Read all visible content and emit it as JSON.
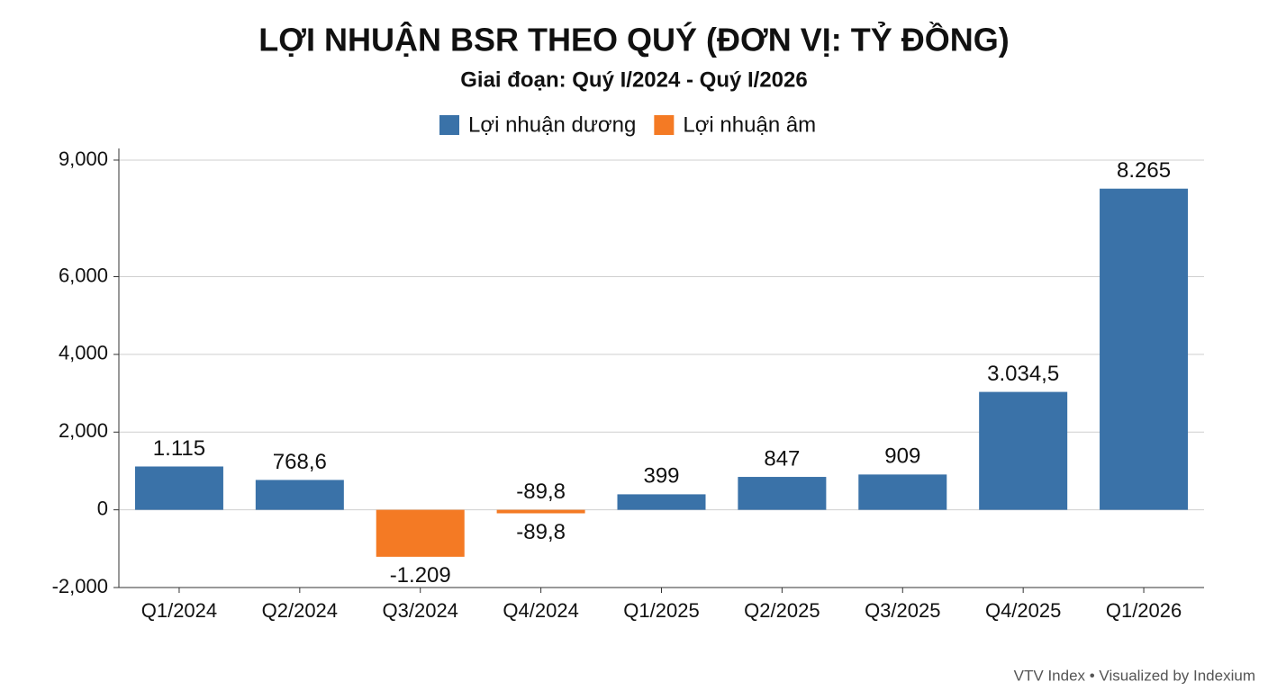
{
  "chart_data": {
    "type": "bar",
    "title": "LỢI NHUẬN BSR THEO QUÝ (ĐƠN VỊ: TỶ ĐỒNG)",
    "subtitle": "Giai đoạn: Quý I/2024 - Quý I/2026",
    "source": "VTV Index • Visualized by Indexium",
    "categories": [
      "Q1/2024",
      "Q2/2024",
      "Q3/2024",
      "Q4/2024",
      "Q1/2025",
      "Q2/2025",
      "Q3/2025",
      "Q4/2025",
      "Q1/2026"
    ],
    "series": [
      {
        "name": "Lợi nhuận dương",
        "color": "#3a72a8",
        "values": [
          1115,
          768.6,
          null,
          null,
          399,
          847,
          909,
          3034.5,
          8265
        ],
        "value_labels": [
          "1.115",
          "768,6",
          null,
          null,
          "399",
          "847",
          "909",
          "3.034,5",
          "8.265"
        ]
      },
      {
        "name": "Lợi nhuận âm",
        "color": "#f47a24",
        "values": [
          null,
          null,
          -1209,
          -89.8,
          null,
          null,
          null,
          null,
          null
        ],
        "value_labels": [
          null,
          null,
          "-1.209",
          "-89,8",
          null,
          null,
          null,
          null,
          null
        ]
      }
    ],
    "ylim": [
      -2000,
      9300
    ],
    "yticks": [
      {
        "value": -2000,
        "label": "-2,000"
      },
      0,
      {
        "value": 2000,
        "label": "2,000"
      },
      {
        "value": 4000,
        "label": "4,000"
      },
      {
        "value": 6000,
        "label": "6,000"
      },
      {
        "value": 9000,
        "label": "9,000"
      }
    ],
    "grid": true,
    "legend": "top"
  }
}
